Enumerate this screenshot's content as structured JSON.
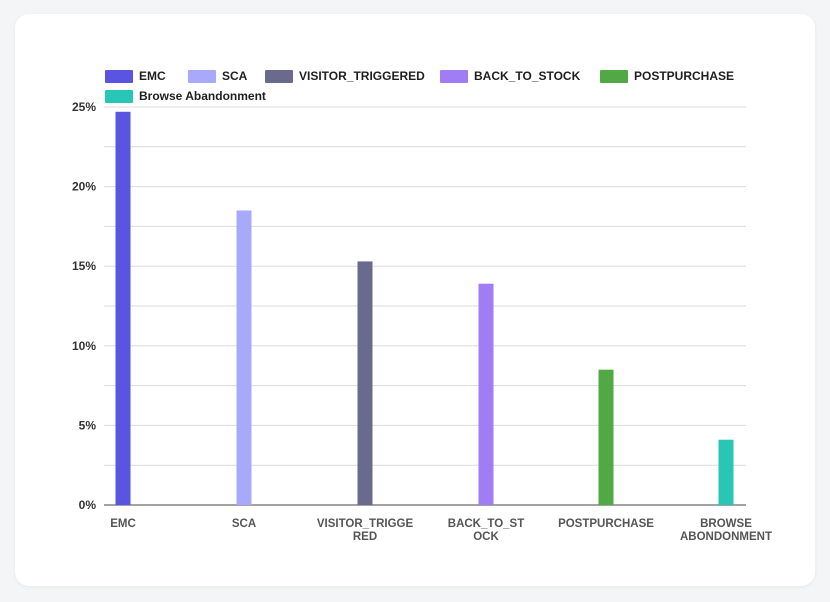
{
  "chart_data": {
    "type": "bar",
    "categories": [
      "EMC",
      "SCA",
      "VISITOR_TRIGGERED",
      "BACK_TO_STOCK",
      "POSTPURCHASE",
      "BROWSE ABONDONMENT"
    ],
    "category_label_lines": [
      [
        "EMC"
      ],
      [
        "SCA"
      ],
      [
        "VISITOR_TRIGGE",
        "RED"
      ],
      [
        "BACK_TO_ST",
        "OCK"
      ],
      [
        "POSTPURCHASE"
      ],
      [
        "BROWSE",
        "ABONDONMENT"
      ]
    ],
    "values": [
      24.7,
      18.5,
      15.3,
      13.9,
      8.5,
      4.1
    ],
    "colors": [
      "#5a55e0",
      "#a9a9fb",
      "#6a6a8e",
      "#a07cf5",
      "#52a844",
      "#27c6b7"
    ],
    "legend": [
      {
        "label": "EMC",
        "color": "#5a55e0"
      },
      {
        "label": "SCA",
        "color": "#a9a9fb"
      },
      {
        "label": "VISITOR_TRIGGERED",
        "color": "#6a6a8e"
      },
      {
        "label": "BACK_TO_STOCK",
        "color": "#a07cf5"
      },
      {
        "label": "POSTPURCHASE",
        "color": "#52a844"
      },
      {
        "label": "Browse Abandonment",
        "color": "#27c6b7"
      }
    ],
    "legend_position": "top-left",
    "ylim": [
      0,
      25
    ],
    "y_ticks": [
      0,
      5,
      10,
      15,
      20,
      25
    ],
    "y_tick_labels": [
      "0%",
      "5%",
      "10%",
      "15%",
      "20%",
      "25%"
    ],
    "grid": true,
    "title": "",
    "xlabel": "",
    "ylabel": ""
  }
}
